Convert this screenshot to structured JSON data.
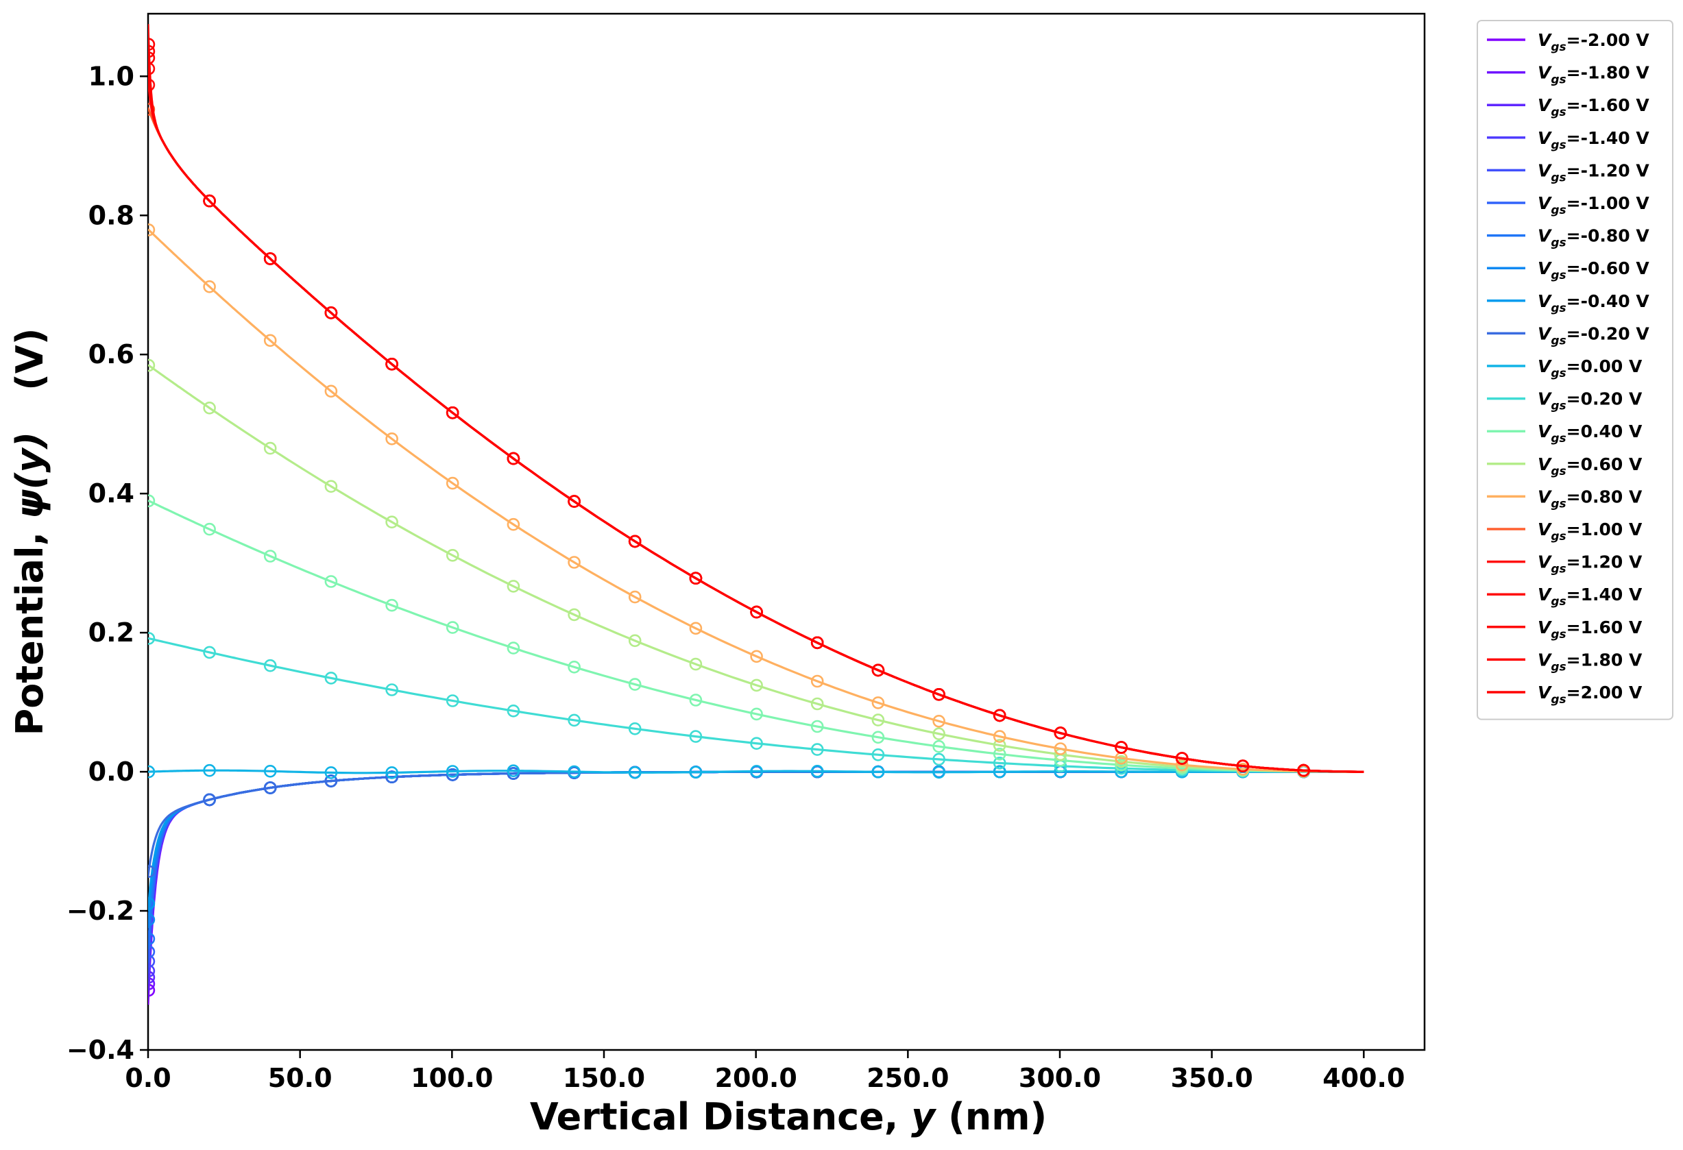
{
  "chart_data": {
    "type": "line",
    "title": "",
    "xlabel": {
      "prefix": "Vertical Distance, ",
      "var": "y",
      "suffix": " (nm)"
    },
    "ylabel": {
      "prefix": "Potential, ",
      "var": "ψ(y)",
      "suffix": "(V)"
    },
    "xlim": [
      0,
      420
    ],
    "ylim": [
      -0.4,
      1.09
    ],
    "xticks": [
      0,
      50,
      100,
      150,
      200,
      250,
      300,
      350,
      400
    ],
    "xtick_labels": [
      "0.0",
      "50.0",
      "100.0",
      "150.0",
      "200.0",
      "250.0",
      "300.0",
      "350.0",
      "400.0"
    ],
    "yticks": [
      -0.4,
      -0.2,
      0.0,
      0.2,
      0.4,
      0.6,
      0.8,
      1.0
    ],
    "ytick_labels": [
      "−0.4",
      "−0.2",
      "0.0",
      "0.2",
      "0.4",
      "0.6",
      "0.8",
      "1.0"
    ],
    "grid": false,
    "legend_placement": "outside-right-top",
    "legend_symbol": "V",
    "legend_subscript": "gs",
    "colormap": "rainbow",
    "marker_x": [
      0.2,
      20.2,
      40.2,
      60.2,
      80.2,
      100.2,
      120.2,
      140.2,
      160.2,
      180.2,
      200.2,
      220.2,
      240.2,
      260.2,
      280.2,
      300.2,
      320.2,
      340.2,
      360.2,
      380.2
    ],
    "x_end": 400,
    "series": [
      {
        "name": "=-2.00 V",
        "color": "#8000ff",
        "v0": -0.335
      },
      {
        "name": "=-1.80 V",
        "color": "#7014ff",
        "v0": -0.325
      },
      {
        "name": "=-1.60 V",
        "color": "#6028ff",
        "v0": -0.315
      },
      {
        "name": "=-1.40 V",
        "color": "#503cfe",
        "v0": -0.305
      },
      {
        "name": "=-1.20 V",
        "color": "#4050fc",
        "v0": -0.29
      },
      {
        "name": "=-1.00 V",
        "color": "#3063fa",
        "v0": -0.275
      },
      {
        "name": "=-0.80 V",
        "color": "#2076f7",
        "v0": -0.255
      },
      {
        "name": "=-0.60 V",
        "color": "#1089f3",
        "v0": -0.225
      },
      {
        "name": "=-0.40 V",
        "color": "#009bee",
        "v0": -0.2
      },
      {
        "name": "=-0.20 V",
        "color": "#3a6ce0",
        "v0": -0.15
      },
      {
        "name": "=0.00 V",
        "color": "#12b4e6",
        "v0": 0.0
      },
      {
        "name": "=0.20 V",
        "color": "#3fdcd4",
        "v0": 0.192
      },
      {
        "name": "=0.40 V",
        "color": "#7ff5b0",
        "v0": 0.39
      },
      {
        "name": "=0.60 V",
        "color": "#b4ec8a",
        "v0": 0.585
      },
      {
        "name": "=0.80 V",
        "color": "#ffb060",
        "v0": 0.78
      },
      {
        "name": "=1.00 V",
        "color": "#ff6030",
        "v0": 0.905
      },
      {
        "name": "=1.20 V",
        "color": "#ff1010",
        "v0": 0.95
      },
      {
        "name": "=1.40 V",
        "color": "#ff0a0a",
        "v0": 0.98
      },
      {
        "name": "=1.60 V",
        "color": "#ff0505",
        "v0": 1.0
      },
      {
        "name": "=1.80 V",
        "color": "#ff0202",
        "v0": 1.012
      },
      {
        "name": "=2.00 V",
        "color": "#ff0000",
        "v0": 1.025
      }
    ]
  }
}
